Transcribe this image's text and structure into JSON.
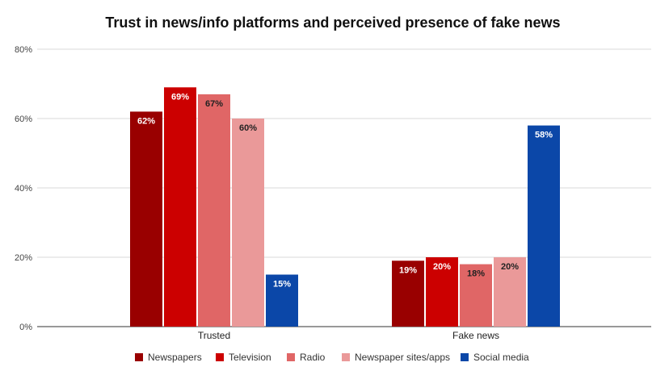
{
  "chart_data": {
    "type": "bar",
    "title": "Trust in news/info platforms and perceived presence of fake news",
    "categories": [
      "Trusted",
      "Fake news"
    ],
    "ylim": [
      0,
      80
    ],
    "yticks": [
      0,
      20,
      40,
      60,
      80
    ],
    "ytick_labels": [
      "0%",
      "20%",
      "40%",
      "60%",
      "80%"
    ],
    "grid": true,
    "legend_position": "bottom",
    "series": [
      {
        "name": "Newspapers",
        "color": "#990000",
        "label_color": "#ffffff",
        "values": [
          62,
          19
        ],
        "labels": [
          "62%",
          "19%"
        ]
      },
      {
        "name": "Television",
        "color": "#cc0000",
        "label_color": "#ffffff",
        "values": [
          69,
          20
        ],
        "labels": [
          "69%",
          "20%"
        ]
      },
      {
        "name": "Radio",
        "color": "#e06666",
        "label_color": "#222222",
        "values": [
          67,
          18
        ],
        "labels": [
          "67%",
          "18%"
        ]
      },
      {
        "name": "Newspaper sites/apps",
        "color": "#ea9999",
        "label_color": "#222222",
        "values": [
          60,
          20
        ],
        "labels": [
          "60%",
          "20%"
        ]
      },
      {
        "name": "Social media",
        "color": "#0b47a8",
        "label_color": "#ffffff",
        "values": [
          15,
          58
        ],
        "labels": [
          "15%",
          "58%"
        ]
      }
    ]
  }
}
